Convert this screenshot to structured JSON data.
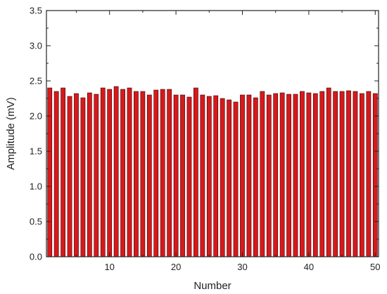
{
  "chart_data": {
    "type": "bar",
    "xlabel": "Number",
    "ylabel": "Amplitude (mV)",
    "xlim": [
      0.5,
      50.5
    ],
    "ylim": [
      0,
      3.5
    ],
    "xticks": [
      "10",
      "20",
      "30",
      "40",
      "50"
    ],
    "yticks": [
      "0.0",
      "0.5",
      "1.0",
      "1.5",
      "2.0",
      "2.5",
      "3.0",
      "3.5"
    ],
    "grid": false,
    "bar_color": "#d7191c",
    "x": [
      1,
      2,
      3,
      4,
      5,
      6,
      7,
      8,
      9,
      10,
      11,
      12,
      13,
      14,
      15,
      16,
      17,
      18,
      19,
      20,
      21,
      22,
      23,
      24,
      25,
      26,
      27,
      28,
      29,
      30,
      31,
      32,
      33,
      34,
      35,
      36,
      37,
      38,
      39,
      40,
      41,
      42,
      43,
      44,
      45,
      46,
      47,
      48,
      49,
      50
    ],
    "values": [
      2.4,
      2.35,
      2.4,
      2.28,
      2.32,
      2.26,
      2.33,
      2.31,
      2.4,
      2.38,
      2.42,
      2.38,
      2.4,
      2.35,
      2.35,
      2.3,
      2.37,
      2.38,
      2.38,
      2.3,
      2.3,
      2.27,
      2.4,
      2.3,
      2.28,
      2.29,
      2.25,
      2.23,
      2.2,
      2.3,
      2.3,
      2.26,
      2.35,
      2.3,
      2.32,
      2.33,
      2.31,
      2.31,
      2.35,
      2.33,
      2.32,
      2.35,
      2.4,
      2.35,
      2.35,
      2.36,
      2.35,
      2.32,
      2.35,
      2.32
    ]
  }
}
